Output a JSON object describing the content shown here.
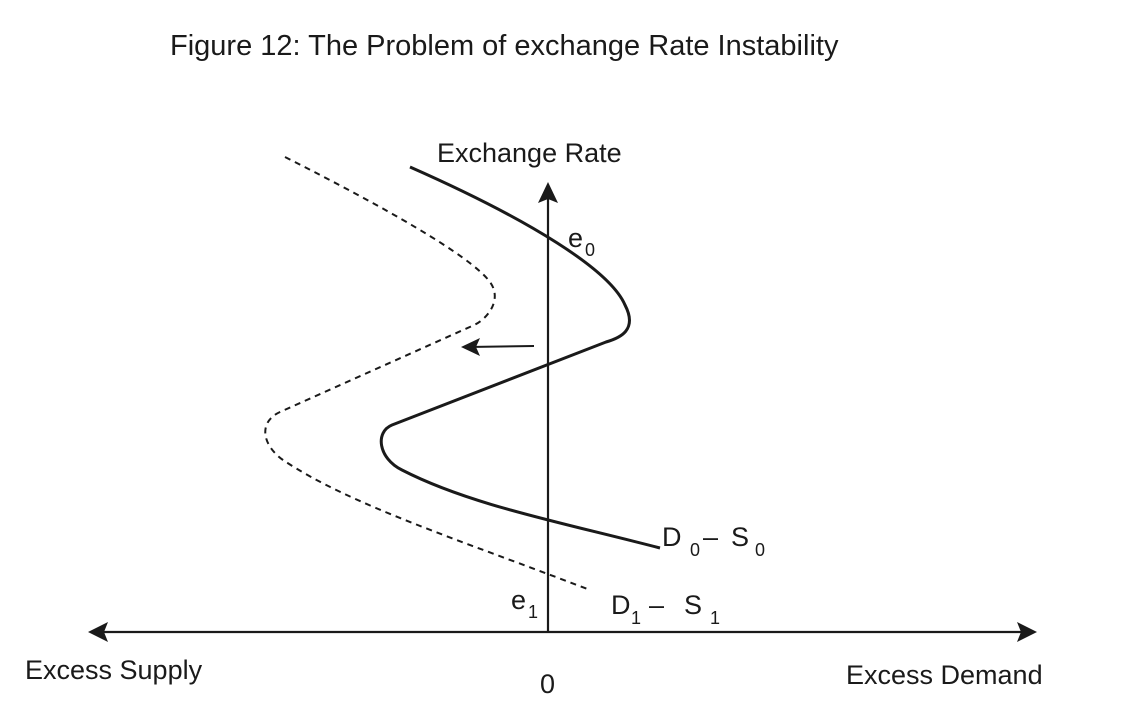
{
  "title": "Figure 12: The Problem of exchange Rate Instability",
  "axes": {
    "y_label": "Exchange Rate",
    "x_left_label": "Excess Supply",
    "x_right_label": "Excess Demand",
    "origin_label": "0"
  },
  "markers": {
    "e0": {
      "base": "e",
      "sub": "0"
    },
    "e1": {
      "base": "e",
      "sub": "1"
    }
  },
  "curves": {
    "d0s0": {
      "d": "D",
      "d_sub": "0",
      "dash": "–",
      "s": "S",
      "s_sub": "0",
      "style": "solid"
    },
    "d1s1": {
      "d": "D",
      "d_sub": "1",
      "dash": "–",
      "s": "S",
      "s_sub": "1",
      "style": "dashed"
    }
  },
  "shift_arrow": {
    "direction": "left",
    "meaning": "D0-S0 shifts to D1-S1"
  },
  "colors": {
    "ink": "#1a1a1a",
    "background": "#ffffff"
  }
}
